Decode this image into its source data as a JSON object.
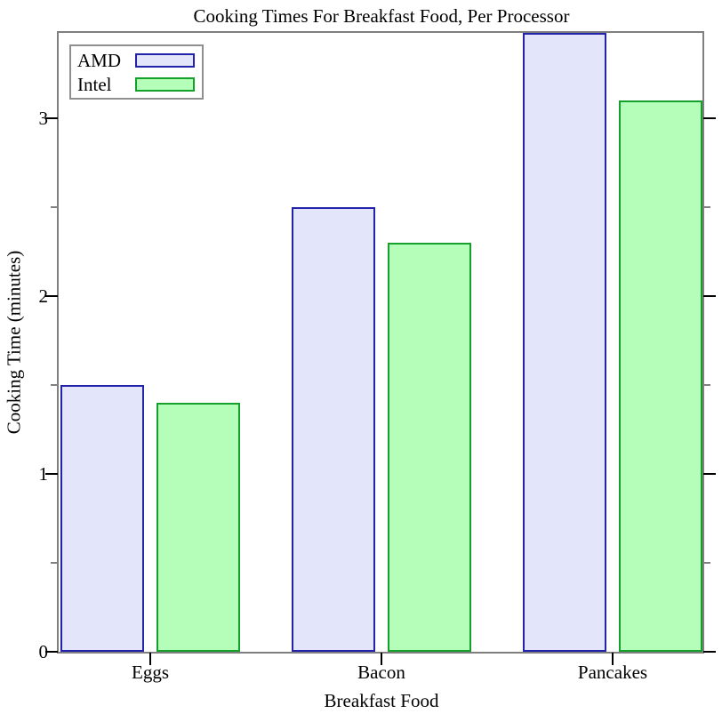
{
  "chart_data": {
    "type": "bar",
    "title": "Cooking Times For Breakfast Food, Per Processor",
    "xlabel": "Breakfast Food",
    "ylabel": "Cooking Time (minutes)",
    "categories": [
      "Eggs",
      "Bacon",
      "Pancakes"
    ],
    "series": [
      {
        "name": "AMD",
        "values": [
          1.5,
          2.5,
          3.5
        ],
        "fill": "#e3e5fb",
        "border": "#2222aa"
      },
      {
        "name": "Intel",
        "values": [
          1.4,
          2.3,
          3.1
        ],
        "fill": "#b4feba",
        "border": "#14a02b"
      }
    ],
    "ylim": [
      0,
      3.485
    ],
    "yticks": [
      0,
      1,
      2,
      3
    ],
    "yminorticks": [
      0.5,
      1.5,
      2.5
    ],
    "grid": false,
    "legend_position": "top-left",
    "frame_color": "#7f7f7f",
    "major_tick_color": "#000000",
    "minor_tick_color": "#808080"
  }
}
